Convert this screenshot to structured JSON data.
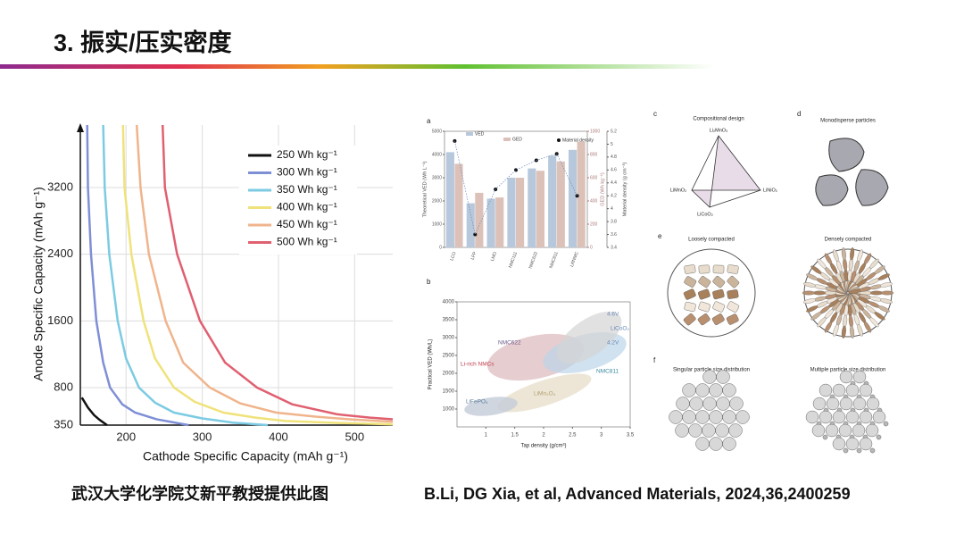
{
  "title": "3. 振实/压实密度",
  "chart_data": [
    {
      "type": "line",
      "x_label": "Cathode Specific Capacity (mAh g⁻¹)",
      "y_label": "Anode Specific Capacity (mAh g⁻¹)",
      "xlim": [
        140,
        550
      ],
      "xticks": [
        200,
        300,
        400,
        500
      ],
      "ylim": [
        350,
        3950
      ],
      "yticks": [
        350,
        800,
        1600,
        2400,
        3200
      ],
      "grid": true,
      "legend": "upper right",
      "series": [
        {
          "name": "250 Wh kg⁻¹",
          "color": "#111111",
          "x": [
            142,
            150,
            158,
            165,
            175
          ],
          "values": [
            680,
            560,
            470,
            415,
            350
          ]
        },
        {
          "name": "300 Wh kg⁻¹",
          "color": "#7f8fd6",
          "x": [
            149,
            150,
            154,
            161,
            170,
            179,
            195,
            212,
            240,
            282
          ],
          "values": [
            3950,
            3200,
            2400,
            1600,
            1100,
            800,
            600,
            500,
            420,
            350
          ]
        },
        {
          "name": "350 Wh kg⁻¹",
          "color": "#7ccbe3",
          "x": [
            170,
            172,
            178,
            189,
            200,
            217,
            238,
            263,
            300,
            340,
            386
          ],
          "values": [
            3950,
            3200,
            2400,
            1600,
            1150,
            800,
            620,
            500,
            430,
            380,
            350
          ]
        },
        {
          "name": "400 Wh kg⁻¹",
          "color": "#f0e27a",
          "x": [
            196,
            198,
            207,
            223,
            238,
            263,
            290,
            328,
            370,
            409,
            480,
            550
          ],
          "values": [
            3950,
            3200,
            2400,
            1600,
            1150,
            800,
            630,
            500,
            440,
            400,
            375,
            360
          ]
        },
        {
          "name": "450 Wh kg⁻¹",
          "color": "#f0b48c",
          "x": [
            214,
            219,
            230,
            252,
            275,
            310,
            350,
            397,
            450,
            500,
            550
          ],
          "values": [
            3950,
            3200,
            2400,
            1600,
            1100,
            800,
            610,
            500,
            450,
            415,
            390
          ]
        },
        {
          "name": "500 Wh kg⁻¹",
          "color": "#e06070",
          "x": [
            248,
            251,
            267,
            297,
            330,
            372,
            418,
            477,
            520,
            550
          ],
          "values": [
            3950,
            3200,
            2400,
            1600,
            1100,
            800,
            600,
            480,
            440,
            420
          ]
        }
      ]
    },
    {
      "type": "bar",
      "panel": "a",
      "categories": [
        "LCO",
        "LFP",
        "LMO",
        "NMC111",
        "NMC622",
        "NMC811",
        "LRNMC"
      ],
      "y_label": "Theoretical VED (Wh L⁻¹)",
      "y2_label": "GED (Wh kg⁻¹)",
      "y3_label": "Material density (g cm⁻³)",
      "ylim": [
        0,
        5000
      ],
      "yticks": [
        0,
        1000,
        2000,
        3000,
        4000,
        5000
      ],
      "y2lim": [
        0,
        1000
      ],
      "y2ticks": [
        0,
        200,
        400,
        600,
        800,
        1000
      ],
      "y3lim": [
        3.4,
        5.2
      ],
      "y3ticks": [
        3.4,
        3.6,
        3.8,
        4.0,
        4.2,
        4.4,
        4.6,
        4.8,
        5.0,
        5.2
      ],
      "series": [
        {
          "name": "VED",
          "color": "#b7c8dc",
          "values": [
            4100,
            1900,
            2100,
            3000,
            3400,
            3950,
            4200
          ]
        },
        {
          "name": "GED",
          "color": "#dcc1b9",
          "axis": "y2",
          "values": [
            720,
            470,
            430,
            600,
            660,
            740,
            910
          ]
        },
        {
          "name": "Material density",
          "color": "#111111",
          "axis": "y3",
          "values": [
            5.05,
            3.6,
            4.3,
            4.6,
            4.75,
            4.85,
            4.2
          ]
        }
      ]
    },
    {
      "type": "scatter",
      "panel": "b",
      "x_label": "Tap density (g/cm³)",
      "y_label": "Practical VED (Wh/L)",
      "xlim": [
        0.5,
        3.5
      ],
      "xticks": [
        1.0,
        1.5,
        2.0,
        2.5,
        3.0,
        3.5
      ],
      "ylim": [
        500,
        4000
      ],
      "yticks": [
        1000,
        1500,
        2000,
        2500,
        3000,
        3500,
        4000
      ],
      "annotations": [
        "NMC622",
        "Li-rich NMCs",
        "LiFePO₄",
        "LiMn₂O₄",
        "NMC811",
        "LiCoO₂",
        "4.6V",
        "4.2V"
      ]
    }
  ],
  "panels": {
    "c": {
      "label": "c",
      "title": "Compositional design",
      "vertices": [
        "Li₂MnO₃",
        "LiMnO₂",
        "LiNiO₂",
        "LiCoO₂"
      ]
    },
    "d": {
      "label": "d",
      "title": "Monodisperse particles"
    },
    "e": {
      "label": "e",
      "left": "Loosely compacted",
      "right": "Densely compacted"
    },
    "f": {
      "label": "f",
      "left": "Singular particle size distribution",
      "right": "Multiple particle size distribution"
    }
  },
  "captions": {
    "left": "武汉大学化学院艾新平教授提供此图",
    "right": "B.Li, DG Xia, et al, Advanced Materials, 2024,36,2400259"
  }
}
